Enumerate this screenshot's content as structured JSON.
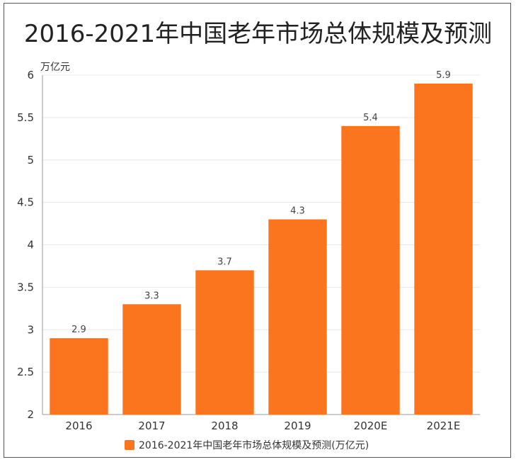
{
  "chart_data": {
    "type": "bar",
    "title": "2016-2021年中国老年市场总体规模及预测",
    "ylabel": "万亿元",
    "xlabel": "",
    "categories": [
      "2016",
      "2017",
      "2018",
      "2019",
      "2020E",
      "2021E"
    ],
    "series": [
      {
        "name": "2016-2021年中国老年市场总体规模及预测(万亿元)",
        "values": [
          2.9,
          3.3,
          3.7,
          4.3,
          5.4,
          5.9
        ]
      }
    ],
    "ylim": [
      2,
      6
    ],
    "yticks": [
      "2",
      "2.5",
      "3",
      "3.5",
      "4",
      "4.5",
      "5",
      "5.5",
      "6"
    ],
    "data_labels": [
      "2.9",
      "3.3",
      "3.7",
      "4.3",
      "5.4",
      "5.9"
    ],
    "legend_position": "bottom",
    "grid": true,
    "colors": {
      "bar": "#FA751E",
      "grid": "#E8E8E8",
      "axis": "#999999"
    }
  }
}
